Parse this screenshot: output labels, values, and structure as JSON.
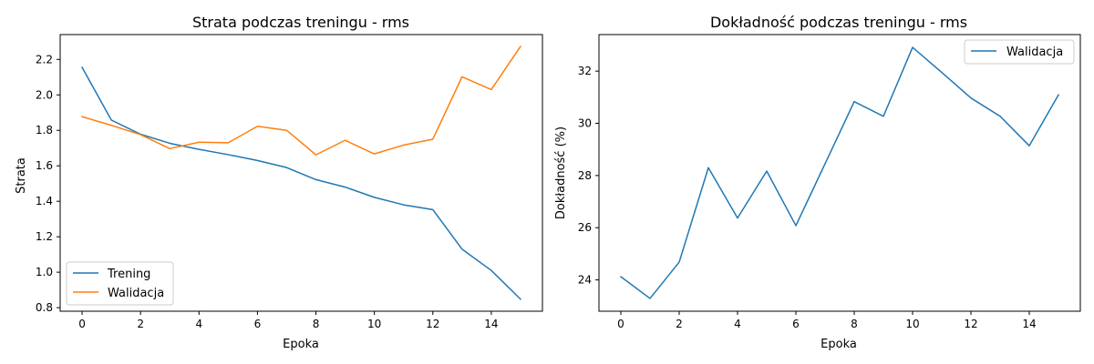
{
  "colors": {
    "trening": "#1f77b4",
    "walidacja": "#ff7f0e"
  },
  "chart_data": [
    {
      "type": "line",
      "title": "Strata podczas treningu - rms",
      "xlabel": "Epoka",
      "ylabel": "Strata",
      "xlim": [
        -0.75,
        15.75
      ],
      "ylim": [
        0.78,
        2.34
      ],
      "xticks": [
        0,
        2,
        4,
        6,
        8,
        10,
        12,
        14
      ],
      "xtick_labels": [
        "0",
        "2",
        "4",
        "6",
        "8",
        "10",
        "12",
        "14"
      ],
      "yticks": [
        0.8,
        1.0,
        1.2,
        1.4,
        1.6,
        1.8,
        2.0,
        2.2
      ],
      "ytick_labels": [
        "0.8",
        "1.0",
        "1.2",
        "1.4",
        "1.6",
        "1.8",
        "2.0",
        "2.2"
      ],
      "grid": false,
      "legend_position": "lower left",
      "x": [
        0,
        1,
        2,
        3,
        4,
        5,
        6,
        7,
        8,
        9,
        10,
        11,
        12,
        13,
        14,
        15
      ],
      "series": [
        {
          "name": "Trening",
          "color": "#1f77b4",
          "values": [
            2.155,
            1.858,
            1.778,
            1.727,
            1.693,
            1.663,
            1.63,
            1.59,
            1.522,
            1.48,
            1.422,
            1.38,
            1.353,
            1.13,
            1.01,
            0.848
          ]
        },
        {
          "name": "Walidacja",
          "color": "#ff7f0e",
          "values": [
            1.877,
            1.828,
            1.776,
            1.697,
            1.733,
            1.73,
            1.823,
            1.8,
            1.662,
            1.744,
            1.667,
            1.717,
            1.75,
            2.102,
            2.03,
            2.273
          ]
        }
      ]
    },
    {
      "type": "line",
      "title": "Dokładność podczas treningu - rms",
      "xlabel": "Epoka",
      "ylabel": "Dokładność (%)",
      "xlim": [
        -0.75,
        15.75
      ],
      "ylim": [
        22.8,
        33.4
      ],
      "xticks": [
        0,
        2,
        4,
        6,
        8,
        10,
        12,
        14
      ],
      "xtick_labels": [
        "0",
        "2",
        "4",
        "6",
        "8",
        "10",
        "12",
        "14"
      ],
      "yticks": [
        24,
        26,
        28,
        30,
        32
      ],
      "ytick_labels": [
        "24",
        "26",
        "28",
        "30",
        "32"
      ],
      "grid": false,
      "legend_position": "upper right",
      "x": [
        0,
        1,
        2,
        3,
        4,
        5,
        6,
        7,
        8,
        9,
        10,
        11,
        12,
        13,
        14,
        15
      ],
      "series": [
        {
          "name": "Walidacja",
          "color": "#1f77b4",
          "values": [
            24.12,
            23.29,
            24.68,
            28.3,
            26.37,
            28.17,
            26.08,
            28.45,
            30.83,
            30.27,
            32.91,
            31.95,
            30.97,
            30.27,
            29.14,
            31.09
          ]
        }
      ]
    }
  ]
}
